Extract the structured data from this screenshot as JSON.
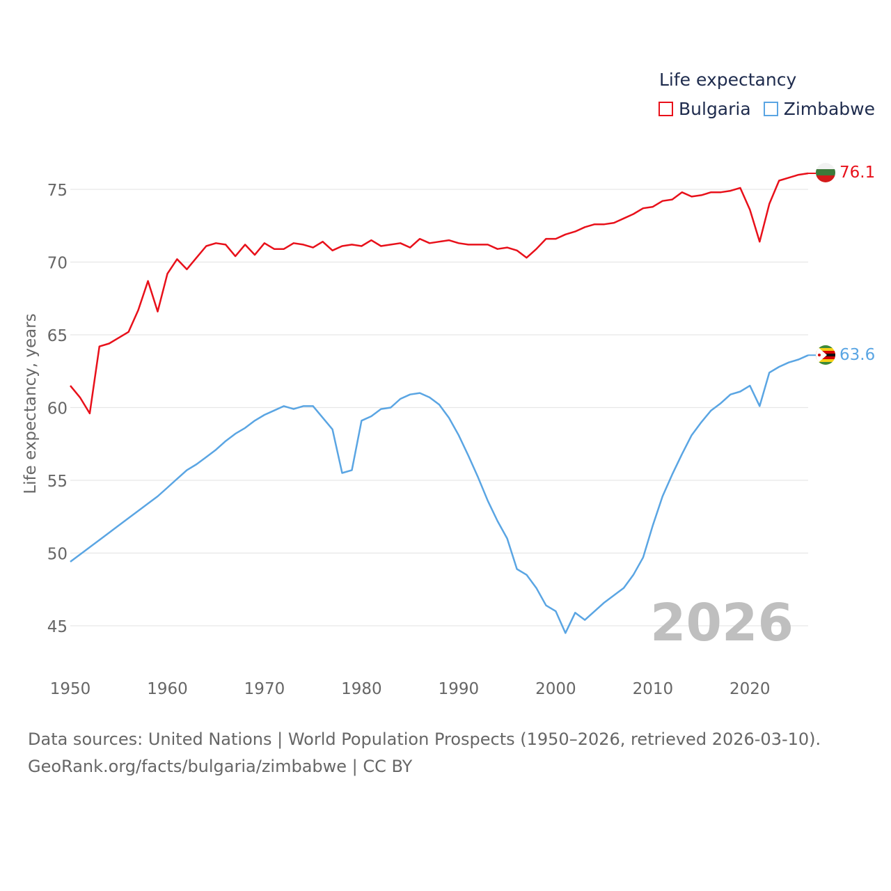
{
  "chart_data": {
    "type": "line",
    "legend_title": "Life expectancy",
    "ylabel": "Life expectancy, years",
    "xlabel": "",
    "xlim": [
      1950,
      2026
    ],
    "ylim": [
      43.5,
      78.5
    ],
    "x_ticks": [
      1950,
      1960,
      1970,
      1980,
      1990,
      2000,
      2010,
      2020
    ],
    "y_ticks": [
      45,
      50,
      55,
      60,
      65,
      70,
      75
    ],
    "year_label": "2026",
    "legend_position": "top-right",
    "series": [
      {
        "name": "Bulgaria",
        "color": "#e8101a",
        "end_label": "76.1",
        "flag": "bulgaria-flag",
        "x": [
          1950,
          1951,
          1952,
          1953,
          1954,
          1955,
          1956,
          1957,
          1958,
          1959,
          1960,
          1961,
          1962,
          1963,
          1964,
          1965,
          1966,
          1967,
          1968,
          1969,
          1970,
          1971,
          1972,
          1973,
          1974,
          1975,
          1976,
          1977,
          1978,
          1979,
          1980,
          1981,
          1982,
          1983,
          1984,
          1985,
          1986,
          1987,
          1988,
          1989,
          1990,
          1991,
          1992,
          1993,
          1994,
          1995,
          1996,
          1997,
          1998,
          1999,
          2000,
          2001,
          2002,
          2003,
          2004,
          2005,
          2006,
          2007,
          2008,
          2009,
          2010,
          2011,
          2012,
          2013,
          2014,
          2015,
          2016,
          2017,
          2018,
          2019,
          2020,
          2021,
          2022,
          2023,
          2024,
          2025,
          2026
        ],
        "values": [
          61.5,
          60.7,
          59.6,
          64.2,
          64.4,
          64.8,
          65.2,
          66.7,
          68.7,
          66.6,
          69.2,
          70.2,
          69.5,
          70.3,
          71.1,
          71.3,
          71.2,
          70.4,
          71.2,
          70.5,
          71.3,
          70.9,
          70.9,
          71.3,
          71.2,
          71.0,
          71.4,
          70.8,
          71.1,
          71.2,
          71.1,
          71.5,
          71.1,
          71.2,
          71.3,
          71.0,
          71.6,
          71.3,
          71.4,
          71.5,
          71.3,
          71.2,
          71.2,
          71.2,
          70.9,
          71.0,
          70.8,
          70.3,
          70.9,
          71.6,
          71.6,
          71.9,
          72.1,
          72.4,
          72.6,
          72.6,
          72.7,
          73.0,
          73.3,
          73.7,
          73.8,
          74.2,
          74.3,
          74.8,
          74.5,
          74.6,
          74.8,
          74.8,
          74.9,
          75.1,
          73.6,
          71.4,
          74.0,
          75.6,
          75.8,
          76.0,
          76.1
        ]
      },
      {
        "name": "Zimbabwe",
        "color": "#5aa5e3",
        "end_label": "63.6",
        "flag": "zimbabwe-flag",
        "x": [
          1950,
          1951,
          1952,
          1953,
          1954,
          1955,
          1956,
          1957,
          1958,
          1959,
          1960,
          1961,
          1962,
          1963,
          1964,
          1965,
          1966,
          1967,
          1968,
          1969,
          1970,
          1971,
          1972,
          1973,
          1974,
          1975,
          1976,
          1977,
          1978,
          1979,
          1980,
          1981,
          1982,
          1983,
          1984,
          1985,
          1986,
          1987,
          1988,
          1989,
          1990,
          1991,
          1992,
          1993,
          1994,
          1995,
          1996,
          1997,
          1998,
          1999,
          2000,
          2001,
          2002,
          2003,
          2004,
          2005,
          2006,
          2007,
          2008,
          2009,
          2010,
          2011,
          2012,
          2013,
          2014,
          2015,
          2016,
          2017,
          2018,
          2019,
          2020,
          2021,
          2022,
          2023,
          2024,
          2025,
          2026
        ],
        "values": [
          49.4,
          49.9,
          50.4,
          50.9,
          51.4,
          51.9,
          52.4,
          52.9,
          53.4,
          53.9,
          54.5,
          55.1,
          55.7,
          56.1,
          56.6,
          57.1,
          57.7,
          58.2,
          58.6,
          59.1,
          59.5,
          59.8,
          60.1,
          59.9,
          60.1,
          60.1,
          59.3,
          58.5,
          55.5,
          55.7,
          59.1,
          59.4,
          59.9,
          60.0,
          60.6,
          60.9,
          61.0,
          60.7,
          60.2,
          59.3,
          58.1,
          56.7,
          55.2,
          53.6,
          52.2,
          51.0,
          48.9,
          48.5,
          47.6,
          46.4,
          46.0,
          44.5,
          45.9,
          45.4,
          46.0,
          46.6,
          47.1,
          47.6,
          48.5,
          49.7,
          51.9,
          53.9,
          55.4,
          56.8,
          58.1,
          59.0,
          59.8,
          60.3,
          60.9,
          61.1,
          61.5,
          60.1,
          62.4,
          62.8,
          63.1,
          63.3,
          63.6
        ]
      }
    ]
  },
  "footer": {
    "line1": "Data sources: United Nations | World Population Prospects (1950–2026, retrieved 2026-03-10).",
    "line2": "GeoRank.org/facts/bulgaria/zimbabwe | CC BY"
  }
}
